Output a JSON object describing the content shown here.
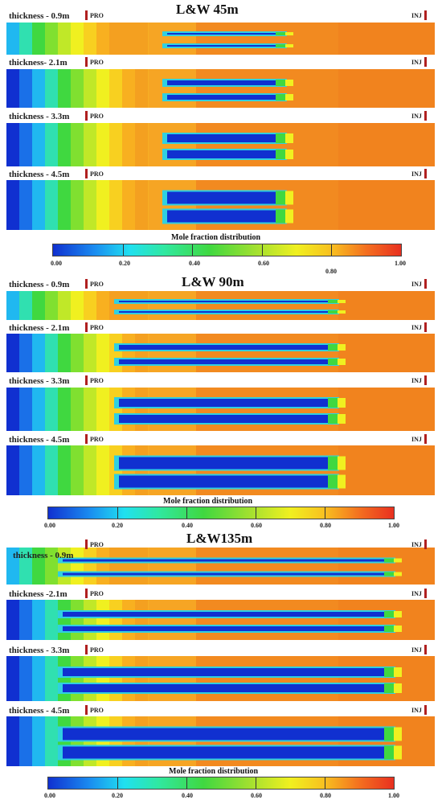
{
  "sections": [
    {
      "title": "L&W 45m",
      "panels": [
        {
          "label": "thickness - 0.9m",
          "pro": "PRO",
          "inj": "INJ"
        },
        {
          "label": "thickness- 2.1m",
          "pro": "PRO",
          "inj": "INJ"
        },
        {
          "label": "thickness - 3.3m",
          "pro": "PRO",
          "inj": "INJ"
        },
        {
          "label": "thickness - 4.5m",
          "pro": "PRO",
          "inj": "INJ"
        }
      ],
      "colorbar": {
        "title": "Mole fraction distribution",
        "ticks": [
          "0.00",
          "0.20",
          "0.40",
          "0.60",
          "0.80",
          "1.00"
        ]
      }
    },
    {
      "title": "L&W 90m",
      "panels": [
        {
          "label": "thickness - 0.9m",
          "pro": "PRO",
          "inj": "INJ"
        },
        {
          "label": "thickness - 2.1m",
          "pro": "PRO",
          "inj": "INJ"
        },
        {
          "label": "thickness - 3.3m",
          "pro": "PRO",
          "inj": "INJ"
        },
        {
          "label": "thickness - 4.5m",
          "pro": "PRO",
          "inj": "INJ"
        }
      ],
      "colorbar": {
        "title": "Mole fraction distribution",
        "ticks": [
          "0.00",
          "0.20",
          "0.40",
          "0.60",
          "0.80",
          "1.00"
        ]
      }
    },
    {
      "title": "L&W135m",
      "panels": [
        {
          "label": "thickness - 0.9m",
          "pro": "PRO",
          "inj": "INJ"
        },
        {
          "label": "thickness -2.1m",
          "pro": "PRO",
          "inj": "INJ"
        },
        {
          "label": "thickness - 3.3m",
          "pro": "PRO",
          "inj": "INJ"
        },
        {
          "label": "thickness - 4.5m",
          "pro": "PRO",
          "inj": "INJ"
        }
      ],
      "colorbar": {
        "title": "Mole fraction distribution",
        "ticks": [
          "0.00",
          "0.20",
          "0.40",
          "0.60",
          "0.80",
          "1.00"
        ]
      }
    }
  ],
  "colors": {
    "background": "#f28a20",
    "low": "#1030d0",
    "high": "#e83020"
  }
}
